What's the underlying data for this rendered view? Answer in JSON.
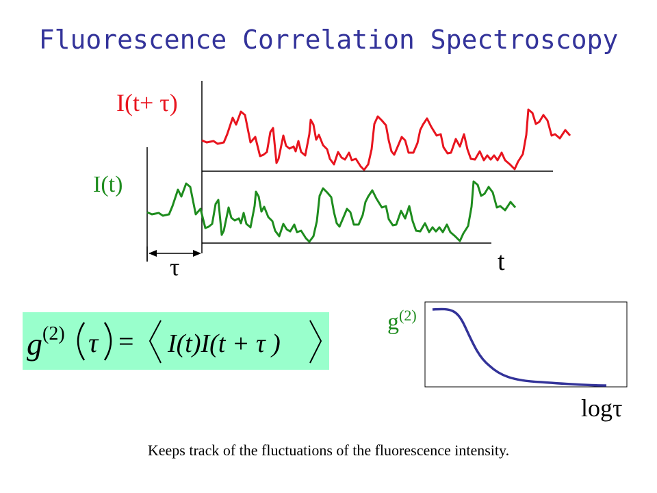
{
  "title": "Fluorescence Correlation Spectroscopy",
  "labels": {
    "shifted_intensity": "I(t+ τ)",
    "intensity": "I(t)",
    "tau": "τ",
    "time": "t",
    "g2_prefix": "g",
    "g2_superscript": "(2)",
    "log_tau": "logτ"
  },
  "equation": {
    "lhs_func": "g",
    "lhs_sup": "(2)",
    "lhs_arg": "τ",
    "equals": "=",
    "rhs": "I(t)I(t + τ )"
  },
  "caption": "Keeps track of the fluctuations of the fluorescence intensity.",
  "colors": {
    "title": "#33339a",
    "shifted_trace": "#e8141e",
    "trace": "#1e8c1e",
    "decay_curve": "#333399",
    "equation_box": "#99ffcc"
  }
}
